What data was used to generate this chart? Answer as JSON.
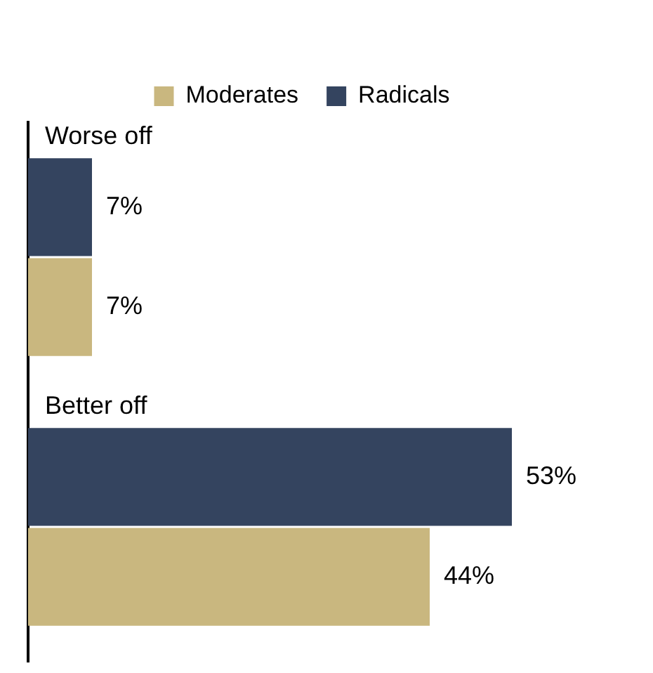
{
  "chart_data": {
    "type": "bar",
    "orientation": "horizontal",
    "categories": [
      "Worse off",
      "Better off"
    ],
    "series": [
      {
        "name": "Moderates",
        "color": "#c9b77f",
        "values": [
          7,
          44
        ],
        "value_labels": [
          "7%",
          "44%"
        ]
      },
      {
        "name": "Radicals",
        "color": "#34445f",
        "values": [
          7,
          53
        ],
        "value_labels": [
          "7%",
          "53%"
        ]
      }
    ],
    "legend": "top"
  }
}
